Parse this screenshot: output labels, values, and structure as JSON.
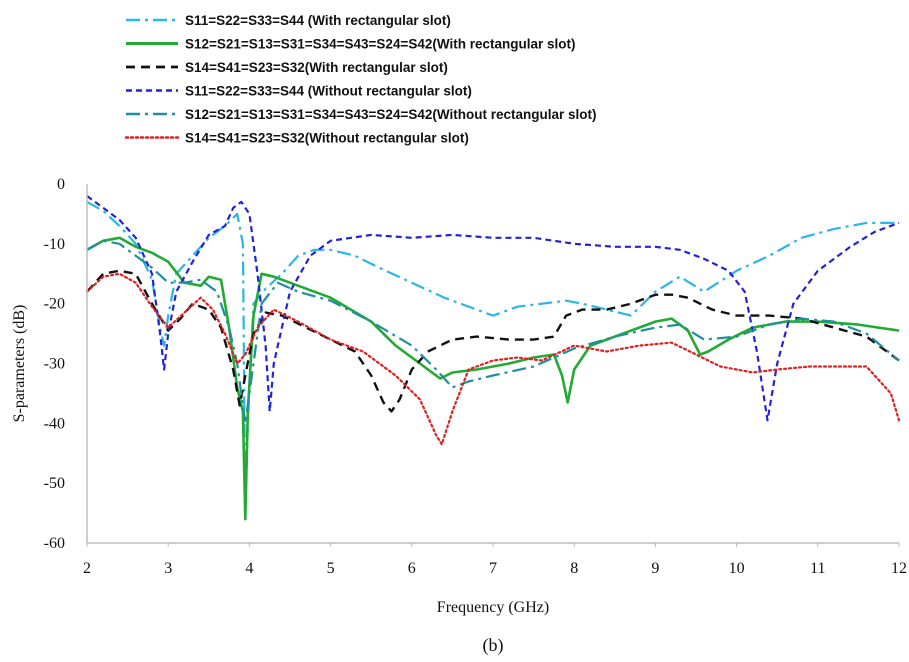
{
  "caption": "(b)",
  "chart_data": {
    "type": "line",
    "xlabel": "Frequency (GHz)",
    "ylabel": "S-parameters (dB)",
    "xlim": [
      2,
      12
    ],
    "ylim": [
      -60,
      0
    ],
    "x_ticks": [
      "2",
      "3",
      "4",
      "5",
      "6",
      "7",
      "8",
      "9",
      "10",
      "11",
      "12"
    ],
    "y_ticks": [
      "0",
      "-10",
      "-20",
      "-30",
      "-40",
      "-50",
      "-60"
    ],
    "grid": false,
    "legend_position": "top-left",
    "series": [
      {
        "name": "S11=S22=S33=S44 (With rectangular slot)",
        "color": "#29b6e8",
        "dash": "dash-dot",
        "points": [
          [
            2.0,
            -3.0
          ],
          [
            2.2,
            -4.5
          ],
          [
            2.4,
            -7.0
          ],
          [
            2.6,
            -10.0
          ],
          [
            2.8,
            -16.0
          ],
          [
            2.9,
            -24.0
          ],
          [
            2.95,
            -27.0
          ],
          [
            3.0,
            -22.0
          ],
          [
            3.1,
            -15.0
          ],
          [
            3.3,
            -12.0
          ],
          [
            3.5,
            -9.0
          ],
          [
            3.7,
            -7.0
          ],
          [
            3.85,
            -5.0
          ],
          [
            3.92,
            -10.0
          ],
          [
            3.95,
            -55.0
          ],
          [
            3.98,
            -40.0
          ],
          [
            4.05,
            -20.0
          ],
          [
            4.2,
            -17.5
          ],
          [
            4.4,
            -15.0
          ],
          [
            4.6,
            -12.0
          ],
          [
            4.8,
            -11.0
          ],
          [
            5.0,
            -11.0
          ],
          [
            5.3,
            -12.0
          ],
          [
            5.6,
            -14.0
          ],
          [
            6.0,
            -16.5
          ],
          [
            6.4,
            -19.0
          ],
          [
            6.8,
            -21.0
          ],
          [
            7.0,
            -22.0
          ],
          [
            7.3,
            -20.5
          ],
          [
            7.6,
            -20.0
          ],
          [
            7.9,
            -19.5
          ],
          [
            8.1,
            -20.0
          ],
          [
            8.4,
            -21.0
          ],
          [
            8.7,
            -22.0
          ],
          [
            9.0,
            -18.0
          ],
          [
            9.3,
            -15.5
          ],
          [
            9.6,
            -18.0
          ],
          [
            10.0,
            -14.5
          ],
          [
            10.4,
            -12.0
          ],
          [
            10.8,
            -9.0
          ],
          [
            11.2,
            -7.5
          ],
          [
            11.6,
            -6.5
          ],
          [
            12.0,
            -6.5
          ]
        ]
      },
      {
        "name": "S12=S21=S13=S31=S34=S43=S24=S42(With rectangular slot)",
        "color": "#22aa33",
        "dash": "solid",
        "points": [
          [
            2.0,
            -11.0
          ],
          [
            2.2,
            -9.5
          ],
          [
            2.4,
            -9.0
          ],
          [
            2.6,
            -10.5
          ],
          [
            2.8,
            -11.5
          ],
          [
            3.0,
            -13.0
          ],
          [
            3.2,
            -16.5
          ],
          [
            3.4,
            -17.0
          ],
          [
            3.5,
            -15.5
          ],
          [
            3.65,
            -16.0
          ],
          [
            3.75,
            -24.0
          ],
          [
            3.85,
            -34.0
          ],
          [
            3.92,
            -38.0
          ],
          [
            3.95,
            -56.0
          ],
          [
            3.98,
            -38.0
          ],
          [
            4.05,
            -22.0
          ],
          [
            4.15,
            -15.0
          ],
          [
            4.3,
            -15.5
          ],
          [
            4.6,
            -17.0
          ],
          [
            5.0,
            -19.0
          ],
          [
            5.5,
            -23.0
          ],
          [
            5.8,
            -27.0
          ],
          [
            6.0,
            -29.0
          ],
          [
            6.2,
            -31.0
          ],
          [
            6.35,
            -32.5
          ],
          [
            6.5,
            -31.5
          ],
          [
            6.8,
            -31.0
          ],
          [
            7.2,
            -30.0
          ],
          [
            7.5,
            -29.0
          ],
          [
            7.75,
            -28.5
          ],
          [
            7.85,
            -32.0
          ],
          [
            7.92,
            -36.5
          ],
          [
            8.0,
            -31.0
          ],
          [
            8.2,
            -27.0
          ],
          [
            8.5,
            -25.5
          ],
          [
            8.8,
            -24.0
          ],
          [
            9.0,
            -23.0
          ],
          [
            9.2,
            -22.5
          ],
          [
            9.4,
            -24.5
          ],
          [
            9.55,
            -28.5
          ],
          [
            9.65,
            -28.0
          ],
          [
            9.9,
            -26.0
          ],
          [
            10.2,
            -24.0
          ],
          [
            10.6,
            -23.0
          ],
          [
            11.0,
            -23.0
          ],
          [
            11.5,
            -23.5
          ],
          [
            12.0,
            -24.5
          ]
        ]
      },
      {
        "name": "S14=S41=S23=S32(With rectangular slot)",
        "color": "#111111",
        "dash": "dash",
        "points": [
          [
            2.0,
            -18.0
          ],
          [
            2.2,
            -15.0
          ],
          [
            2.4,
            -14.5
          ],
          [
            2.6,
            -15.0
          ],
          [
            2.8,
            -20.0
          ],
          [
            3.0,
            -24.5
          ],
          [
            3.15,
            -22.5
          ],
          [
            3.3,
            -20.0
          ],
          [
            3.5,
            -21.0
          ],
          [
            3.65,
            -24.0
          ],
          [
            3.8,
            -31.0
          ],
          [
            3.88,
            -37.0
          ],
          [
            3.95,
            -32.0
          ],
          [
            4.05,
            -25.0
          ],
          [
            4.2,
            -21.5
          ],
          [
            4.4,
            -22.0
          ],
          [
            4.7,
            -24.0
          ],
          [
            5.0,
            -26.0
          ],
          [
            5.3,
            -28.0
          ],
          [
            5.5,
            -32.0
          ],
          [
            5.65,
            -36.5
          ],
          [
            5.75,
            -38.0
          ],
          [
            5.85,
            -36.0
          ],
          [
            6.0,
            -31.0
          ],
          [
            6.2,
            -28.0
          ],
          [
            6.5,
            -26.0
          ],
          [
            6.8,
            -25.5
          ],
          [
            7.2,
            -26.0
          ],
          [
            7.5,
            -26.0
          ],
          [
            7.75,
            -25.5
          ],
          [
            7.9,
            -22.0
          ],
          [
            8.1,
            -21.0
          ],
          [
            8.4,
            -21.0
          ],
          [
            8.7,
            -20.0
          ],
          [
            9.0,
            -18.5
          ],
          [
            9.2,
            -18.5
          ],
          [
            9.4,
            -19.0
          ],
          [
            9.7,
            -21.0
          ],
          [
            10.0,
            -22.0
          ],
          [
            10.4,
            -22.0
          ],
          [
            10.8,
            -22.5
          ],
          [
            11.2,
            -24.0
          ],
          [
            11.6,
            -25.5
          ],
          [
            12.0,
            -29.5
          ]
        ]
      },
      {
        "name": "S11=S22=S33=S44 (Without rectangular slot)",
        "color": "#2222dd",
        "dash": "short-dash",
        "points": [
          [
            2.0,
            -2.0
          ],
          [
            2.2,
            -4.0
          ],
          [
            2.4,
            -6.0
          ],
          [
            2.6,
            -9.0
          ],
          [
            2.8,
            -15.0
          ],
          [
            2.9,
            -25.0
          ],
          [
            2.95,
            -31.0
          ],
          [
            3.0,
            -25.0
          ],
          [
            3.1,
            -18.0
          ],
          [
            3.3,
            -13.0
          ],
          [
            3.5,
            -8.5
          ],
          [
            3.7,
            -7.0
          ],
          [
            3.8,
            -4.0
          ],
          [
            3.9,
            -3.0
          ],
          [
            4.0,
            -5.0
          ],
          [
            4.1,
            -15.0
          ],
          [
            4.2,
            -27.0
          ],
          [
            4.25,
            -38.0
          ],
          [
            4.3,
            -30.0
          ],
          [
            4.5,
            -18.0
          ],
          [
            4.75,
            -12.0
          ],
          [
            5.0,
            -9.5
          ],
          [
            5.5,
            -8.5
          ],
          [
            6.0,
            -9.0
          ],
          [
            6.5,
            -8.5
          ],
          [
            7.0,
            -9.0
          ],
          [
            7.5,
            -9.0
          ],
          [
            8.0,
            -10.0
          ],
          [
            8.5,
            -10.5
          ],
          [
            9.0,
            -10.5
          ],
          [
            9.3,
            -11.0
          ],
          [
            9.6,
            -12.5
          ],
          [
            9.9,
            -14.5
          ],
          [
            10.1,
            -18.0
          ],
          [
            10.25,
            -28.0
          ],
          [
            10.38,
            -39.5
          ],
          [
            10.5,
            -30.0
          ],
          [
            10.7,
            -20.0
          ],
          [
            11.0,
            -14.5
          ],
          [
            11.4,
            -10.5
          ],
          [
            11.7,
            -8.0
          ],
          [
            12.0,
            -6.5
          ]
        ]
      },
      {
        "name": "S12=S21=S13=S31=S34=S43=S24=S42(Without rectangular slot)",
        "color": "#1f8fa0",
        "dash": "dash-dot",
        "points": [
          [
            2.0,
            -11.0
          ],
          [
            2.2,
            -9.5
          ],
          [
            2.4,
            -10.0
          ],
          [
            2.6,
            -12.0
          ],
          [
            2.8,
            -14.0
          ],
          [
            3.0,
            -16.5
          ],
          [
            3.2,
            -16.5
          ],
          [
            3.4,
            -16.0
          ],
          [
            3.6,
            -18.0
          ],
          [
            3.75,
            -24.0
          ],
          [
            3.85,
            -30.0
          ],
          [
            3.95,
            -40.0
          ],
          [
            4.05,
            -30.0
          ],
          [
            4.15,
            -20.0
          ],
          [
            4.35,
            -16.5
          ],
          [
            4.6,
            -18.0
          ],
          [
            5.0,
            -19.5
          ],
          [
            5.5,
            -23.0
          ],
          [
            6.0,
            -27.0
          ],
          [
            6.3,
            -31.0
          ],
          [
            6.5,
            -34.0
          ],
          [
            6.7,
            -33.0
          ],
          [
            7.0,
            -32.0
          ],
          [
            7.5,
            -30.5
          ],
          [
            8.0,
            -27.5
          ],
          [
            8.5,
            -25.5
          ],
          [
            9.0,
            -24.0
          ],
          [
            9.3,
            -23.5
          ],
          [
            9.6,
            -26.0
          ],
          [
            10.0,
            -25.5
          ],
          [
            10.4,
            -23.5
          ],
          [
            10.8,
            -22.5
          ],
          [
            11.2,
            -23.0
          ],
          [
            11.6,
            -25.0
          ],
          [
            12.0,
            -29.5
          ]
        ]
      },
      {
        "name": "S14=S41=S23=S32(Without rectangular slot)",
        "color": "#e02020",
        "dash": "dot",
        "points": [
          [
            2.0,
            -18.0
          ],
          [
            2.2,
            -15.5
          ],
          [
            2.4,
            -15.0
          ],
          [
            2.6,
            -16.5
          ],
          [
            2.8,
            -20.5
          ],
          [
            3.0,
            -24.0
          ],
          [
            3.2,
            -21.5
          ],
          [
            3.4,
            -19.0
          ],
          [
            3.55,
            -21.0
          ],
          [
            3.7,
            -25.0
          ],
          [
            3.85,
            -30.0
          ],
          [
            3.95,
            -28.5
          ],
          [
            4.1,
            -24.0
          ],
          [
            4.3,
            -21.0
          ],
          [
            4.6,
            -23.0
          ],
          [
            5.0,
            -26.0
          ],
          [
            5.4,
            -28.0
          ],
          [
            5.8,
            -32.0
          ],
          [
            6.1,
            -36.0
          ],
          [
            6.3,
            -42.0
          ],
          [
            6.37,
            -43.5
          ],
          [
            6.5,
            -38.0
          ],
          [
            6.7,
            -31.0
          ],
          [
            7.0,
            -29.5
          ],
          [
            7.3,
            -29.0
          ],
          [
            7.6,
            -29.5
          ],
          [
            8.0,
            -27.0
          ],
          [
            8.4,
            -28.0
          ],
          [
            8.8,
            -27.0
          ],
          [
            9.2,
            -26.5
          ],
          [
            9.5,
            -28.5
          ],
          [
            9.8,
            -30.5
          ],
          [
            10.2,
            -31.5
          ],
          [
            10.5,
            -31.0
          ],
          [
            10.9,
            -30.5
          ],
          [
            11.3,
            -30.5
          ],
          [
            11.6,
            -30.5
          ],
          [
            11.9,
            -35.0
          ],
          [
            12.0,
            -39.5
          ]
        ]
      }
    ]
  }
}
